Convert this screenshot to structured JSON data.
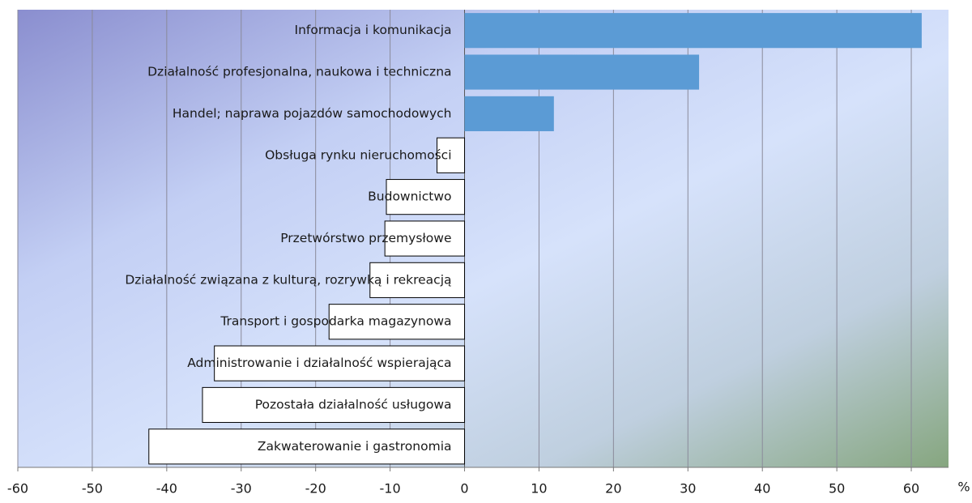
{
  "chart_data": {
    "type": "barh",
    "unit": "%",
    "categories": [
      "Informacja i komunikacja",
      "Działalność profesjonalna, naukowa i techniczna",
      "Handel; naprawa pojazdów samochodowych",
      "Obsługa rynku nieruchomości",
      "Budownictwo",
      "Przetwórstwo przemysłowe",
      "Działalność związana z kulturą, rozrywką i rekreacją",
      "Transport i gospodarka magazynowa",
      "Administrowanie i działalność wspierająca",
      "Pozostała działalność usługowa",
      "Zakwaterowanie i gastronomia"
    ],
    "values": [
      61.4,
      31.5,
      12.0,
      -3.7,
      -10.5,
      -10.7,
      -12.7,
      -18.2,
      -33.6,
      -35.2,
      -42.4
    ],
    "colors": [
      "#5b9bd5",
      "#5b9bd5",
      "#5b9bd5",
      "#ffffff",
      "#ffffff",
      "#ffffff",
      "#ffffff",
      "#ffffff",
      "#ffffff",
      "#ffffff",
      "#ffffff"
    ],
    "xlim": [
      -60,
      65
    ],
    "xticks": [
      -60,
      -50,
      -40,
      -30,
      -20,
      -10,
      0,
      10,
      20,
      30,
      40,
      50,
      60
    ],
    "grid": true
  }
}
